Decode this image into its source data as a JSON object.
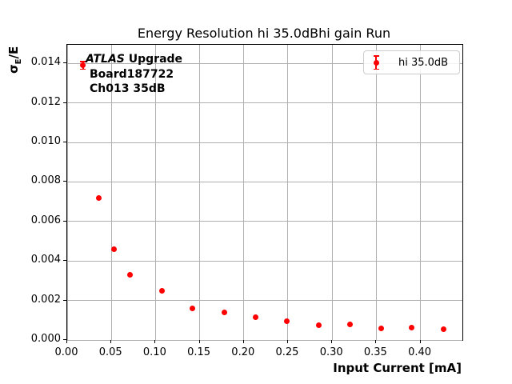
{
  "chart_data": {
    "type": "scatter",
    "title": "Energy Resolution hi 35.0dBhi gain Run",
    "xlabel": "Input Current [mA]",
    "ylabel": "σE/E",
    "ylabel_parts": {
      "sigma": "σ",
      "sigma_sub": "E",
      "rest": "/E"
    },
    "xlim": [
      0,
      0.4475
    ],
    "ylim": [
      0,
      0.01494
    ],
    "xticks": [
      0.0,
      0.05,
      0.1,
      0.15,
      0.2,
      0.25,
      0.3,
      0.35,
      0.4
    ],
    "xtick_labels": [
      "0.00",
      "0.05",
      "0.10",
      "0.15",
      "0.20",
      "0.25",
      "0.30",
      "0.35",
      "0.40"
    ],
    "yticks": [
      0.0,
      0.002,
      0.004,
      0.006,
      0.008,
      0.01,
      0.012,
      0.014
    ],
    "ytick_labels": [
      "0.000",
      "0.002",
      "0.004",
      "0.006",
      "0.008",
      "0.010",
      "0.012",
      "0.014"
    ],
    "grid": true,
    "legend_position": "upper right",
    "series": [
      {
        "name": "hi 35.0dB",
        "marker": "circle-errorbar",
        "color": "#ff0000",
        "x": [
          0.018,
          0.036,
          0.053,
          0.071,
          0.107,
          0.142,
          0.178,
          0.213,
          0.249,
          0.285,
          0.32,
          0.356,
          0.39,
          0.426
        ],
        "y": [
          0.0139,
          0.0072,
          0.0046,
          0.0033,
          0.0025,
          0.0016,
          0.0014,
          0.00115,
          0.00097,
          0.00075,
          0.00078,
          0.00058,
          0.00063,
          0.00055
        ],
        "yerr": [
          0.00022,
          0,
          0,
          0,
          0,
          0,
          0,
          0,
          0,
          0,
          0,
          0,
          0,
          0
        ]
      }
    ],
    "annotation": {
      "experiment": "ATLAS",
      "experiment_suffix": " Upgrade",
      "line2": "Board187722",
      "line3": "Ch013 35dB"
    },
    "legend_entries": [
      "hi 35.0dB"
    ]
  },
  "colors": {
    "marker": "#ff0000",
    "grid": "#b0b0b0",
    "spine": "#000000",
    "legend_border": "#cccccc",
    "background": "#ffffff"
  }
}
